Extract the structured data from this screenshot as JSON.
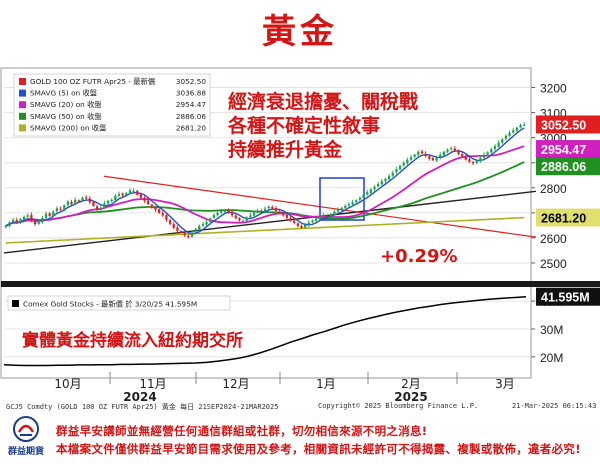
{
  "title": "黃金",
  "chart_data": {
    "type": "candlestick",
    "months": [
      "10月",
      "11月",
      "12月",
      "1月",
      "2月",
      "3月"
    ],
    "years": [
      "2024",
      "2025"
    ],
    "price_axis": {
      "ticks": [
        2500,
        2600,
        2700,
        2800,
        2900,
        3000,
        3100,
        3200
      ],
      "ylim": [
        2440,
        3270
      ]
    },
    "legend": [
      {
        "label": "GOLD 100 OZ FUTR Apr25 - 最新價",
        "value": "3052.50",
        "color": "#e02020"
      },
      {
        "label": "SMAVG (5)  on 收盤",
        "value": "3036.88",
        "color": "#2050d0"
      },
      {
        "label": "SMAVG (20)  on 收盤",
        "value": "2954.47",
        "color": "#d020c0"
      },
      {
        "label": "SMAVG (50)  on 收盤",
        "value": "2886.06",
        "color": "#209020"
      },
      {
        "label": "SMAVG (200)  on 收盤",
        "value": "2681.20",
        "color": "#b0b020"
      }
    ],
    "value_labels": [
      {
        "text": "3052.50",
        "value": 3052.5,
        "bg": "#e02020",
        "fg": "#ffffff"
      },
      {
        "text": "2954.47",
        "value": 2954.47,
        "bg": "#d020c0",
        "fg": "#ffffff"
      },
      {
        "text": "2886.06",
        "value": 2886.06,
        "bg": "#209020",
        "fg": "#ffffff"
      },
      {
        "text": "2681.20",
        "value": 2681.2,
        "bg": "#e0e070",
        "fg": "#000000"
      }
    ],
    "annotation_text": [
      "經濟衰退擔憂、關稅戰",
      "各種不確定性敘事",
      "持續推升黃金"
    ],
    "change_text": "+0.29%",
    "closes": [
      2648,
      2662,
      2672,
      2660,
      2675,
      2684,
      2690,
      2668,
      2655,
      2665,
      2680,
      2696,
      2688,
      2705,
      2718,
      2712,
      2730,
      2745,
      2735,
      2752,
      2748,
      2760,
      2758,
      2742,
      2728,
      2712,
      2720,
      2738,
      2748,
      2752,
      2768,
      2775,
      2770,
      2778,
      2790,
      2788,
      2772,
      2760,
      2748,
      2735,
      2722,
      2712,
      2700,
      2690,
      2672,
      2655,
      2640,
      2628,
      2620,
      2610,
      2605,
      2622,
      2636,
      2648,
      2656,
      2664,
      2678,
      2692,
      2700,
      2706,
      2712,
      2702,
      2690,
      2678,
      2670,
      2668,
      2680,
      2690,
      2700,
      2710,
      2706,
      2716,
      2725,
      2718,
      2708,
      2698,
      2690,
      2680,
      2668,
      2660,
      2648,
      2640,
      2652,
      2662,
      2670,
      2678,
      2684,
      2690,
      2686,
      2694,
      2705,
      2712,
      2720,
      2728,
      2735,
      2742,
      2750,
      2760,
      2772,
      2782,
      2794,
      2804,
      2815,
      2826,
      2836,
      2848,
      2860,
      2874,
      2888,
      2900,
      2912,
      2922,
      2932,
      2944,
      2938,
      2926,
      2916,
      2910,
      2920,
      2932,
      2944,
      2952,
      2958,
      2948,
      2936,
      2926,
      2912,
      2904,
      2898,
      2908,
      2920,
      2932,
      2942,
      2954,
      2966,
      2980,
      2994,
      3008,
      3020,
      3030,
      3040,
      3050,
      3052.5
    ],
    "trend_line": {
      "start": 2540,
      "end": 2786
    },
    "resistance_line": {
      "start": 2846,
      "end": 2603
    },
    "volume_panel": {
      "legend": "Comex Gold Stocks - 最新價 於 3/20/25 41.595M",
      "latest_text": "41.595M",
      "ticks": [
        "20M",
        "30M",
        "40M"
      ],
      "ylim": [
        16,
        44
      ],
      "values": [
        17.2,
        17.0,
        16.9,
        16.9,
        16.9,
        17.0,
        17.0,
        17.1,
        17.1,
        17.2,
        17.2,
        17.3,
        17.3,
        17.4,
        17.4,
        17.5,
        17.6,
        17.7,
        17.8,
        18.0,
        18.4,
        18.9,
        19.5,
        20.3,
        21.4,
        22.6,
        24.0,
        25.4,
        26.6,
        27.9,
        29.0,
        30.2,
        31.5,
        32.6,
        33.6,
        34.5,
        35.4,
        36.2,
        36.9,
        37.6,
        38.2,
        38.8,
        39.3,
        39.7,
        40.1,
        40.5,
        40.8,
        41.1,
        41.3,
        41.595
      ],
      "annotation": "實體黃金持續流入紐約期交所"
    }
  },
  "footer": {
    "source": "GCJ5 Comdty (GOLD 100 OZ FUTR Apr25) 黃金  每日 21SEP2024-21MAR2025",
    "copyright": "Copyright© 2025 Bloomberg Finance L.P.",
    "date": "21-Mar-2025 06:15:43"
  },
  "logo_text": "群益期貨",
  "disclaimer": [
    "群益早安講師並無經營任何通信群組或社群，切勿相信來源不明之消息!",
    "本檔案文件僅供群益早安節目需求使用及參考，相關資訊未經許可不得揭露、複製或散佈，違者必究!"
  ]
}
